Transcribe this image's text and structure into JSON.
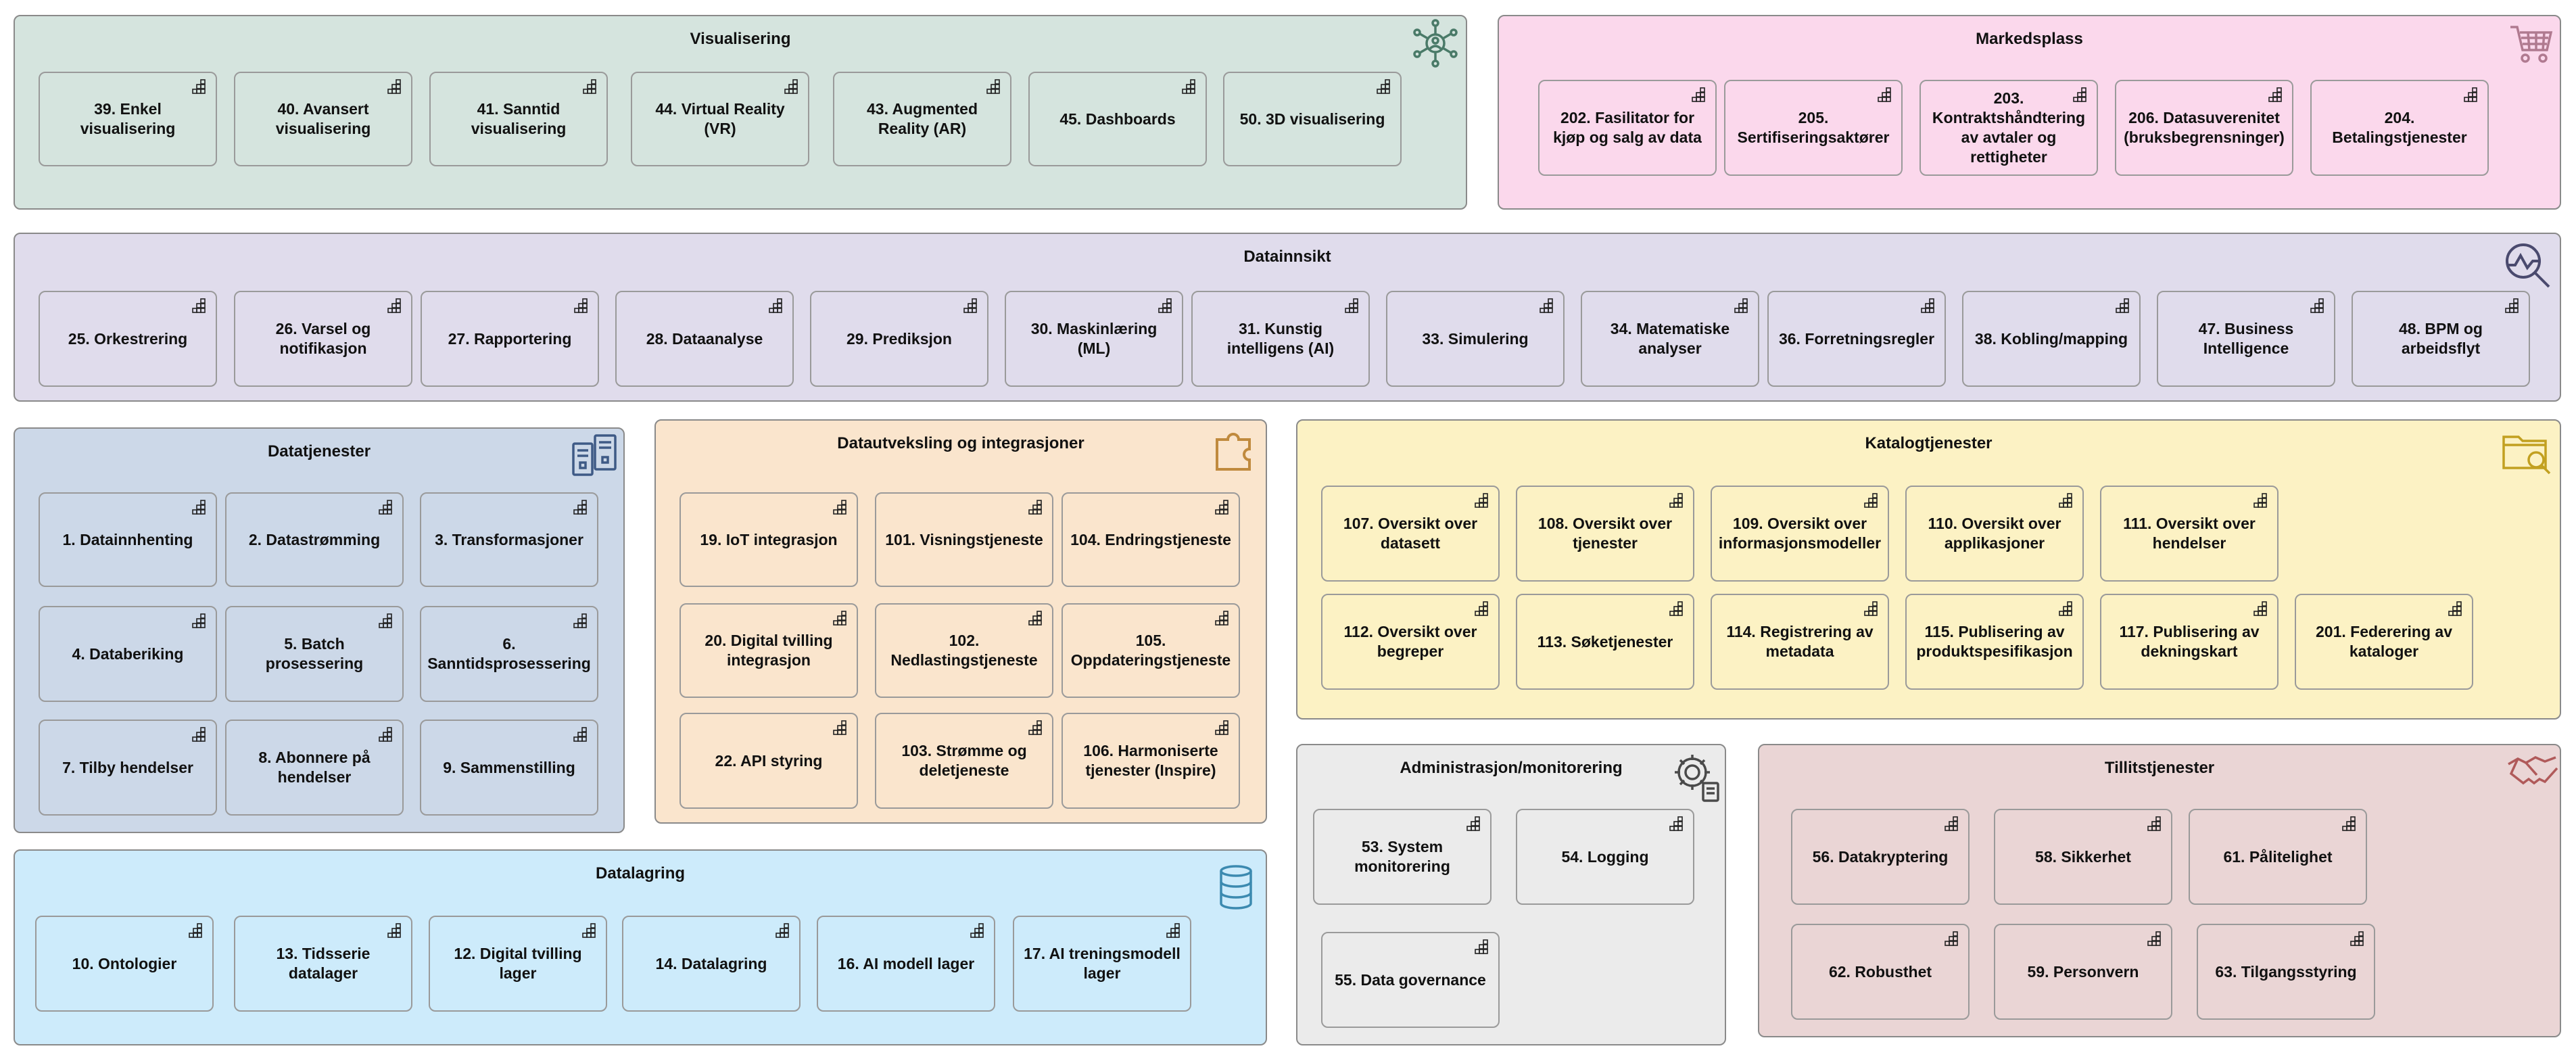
{
  "colors": {
    "visualisering": "#d5e4de",
    "markedsplass": "#fbd8ec",
    "datainnsikt": "#e0dcec",
    "datatjenester": "#ccd8e8",
    "datautveksling": "#fae5cd",
    "katalog": "#fcf2c4",
    "administrasjon": "#ebebeb",
    "tillit": "#ead5d5",
    "datalagring": "#cdebfb"
  },
  "groups": {
    "visualisering": {
      "title": "Visualisering",
      "icon": "network-people-icon",
      "items": [
        "39. Enkel visualisering",
        "40. Avansert visualisering",
        "41. Sanntid visualisering",
        "44. Virtual Reality (VR)",
        "43. Augmented Reality (AR)",
        "45. Dashboards",
        "50. 3D visualisering"
      ]
    },
    "markedsplass": {
      "title": "Markedsplass",
      "icon": "shopping-cart-icon",
      "items": [
        "202. Fasilitator for kjøp og salg av data",
        "205. Sertifiseringsaktører",
        "203. Kontraktshåndtering av avtaler og rettigheter",
        "206. Datasuverenitet (bruksbegrensninger)",
        "204. Betalingstjenester"
      ]
    },
    "datainnsikt": {
      "title": "Datainnsikt",
      "icon": "analytics-magnifier-icon",
      "items": [
        "25. Orkestrering",
        "26. Varsel og notifikasjon",
        "27. Rapportering",
        "28. Dataanalyse",
        "29. Prediksjon",
        "30. Maskinlæring (ML)",
        "31. Kunstig intelligens (AI)",
        "33. Simulering",
        "34. Matematiske analyser",
        "36. Forretningsregler",
        "38. Kobling/mapping",
        "47. Business Intelligence",
        "48. BPM og arbeidsflyt"
      ]
    },
    "datatjenester": {
      "title": "Datatjenester",
      "icon": "server-racks-icon",
      "items": [
        "1. Datainnhenting",
        "2. Datastrømming",
        "3. Transformasjoner",
        "4. Databeriking",
        "5. Batch prosessering",
        "6. Sanntidsprosessering",
        "7. Tilby hendelser",
        "8. Abonnere på hendelser",
        "9. Sammenstilling"
      ]
    },
    "datautveksling": {
      "title": "Datautveksling og integrasjoner",
      "icon": "puzzle-piece-icon",
      "items": [
        "19. IoT integrasjon",
        "101. Visningstjeneste",
        "104. Endringstjeneste",
        "20. Digital tvilling integrasjon",
        "102. Nedlastingstjeneste",
        "105. Oppdateringstjeneste",
        "22. API styring",
        "103. Strømme og deletjeneste",
        "106. Harmoniserte tjenester (Inspire)"
      ]
    },
    "katalog": {
      "title": "Katalogtjenester",
      "icon": "folder-search-icon",
      "items": [
        "107. Oversikt over datasett",
        "108. Oversikt over tjenester",
        "109. Oversikt over informasjonsmodeller",
        "110. Oversikt over applikasjoner",
        "111. Oversikt over hendelser",
        "112. Oversikt over begreper",
        "113. Søketjenester",
        "114. Registrering av metadata",
        "115. Publisering av produktspesifikasjon",
        "117. Publisering av dekningskart",
        "201. Federering av kataloger"
      ]
    },
    "administrasjon": {
      "title": "Administrasjon/monitorering",
      "icon": "gear-document-icon",
      "items": [
        "53. System monitorering",
        "54. Logging",
        "55. Data governance"
      ]
    },
    "tillit": {
      "title": "Tillitstjenester",
      "icon": "handshake-icon",
      "items": [
        "56. Datakryptering",
        "58. Sikkerhet",
        "61. Pålitelighet",
        "62. Robusthet",
        "59. Personvern",
        "63. Tilgangsstyring"
      ]
    },
    "datalagring": {
      "title": "Datalagring",
      "icon": "database-icon",
      "items": [
        "10. Ontologier",
        "13. Tidsserie datalager",
        "12. Digital tvilling lager",
        "14. Datalagring",
        "16. AI modell lager",
        "17. AI treningsmodell lager"
      ]
    }
  }
}
